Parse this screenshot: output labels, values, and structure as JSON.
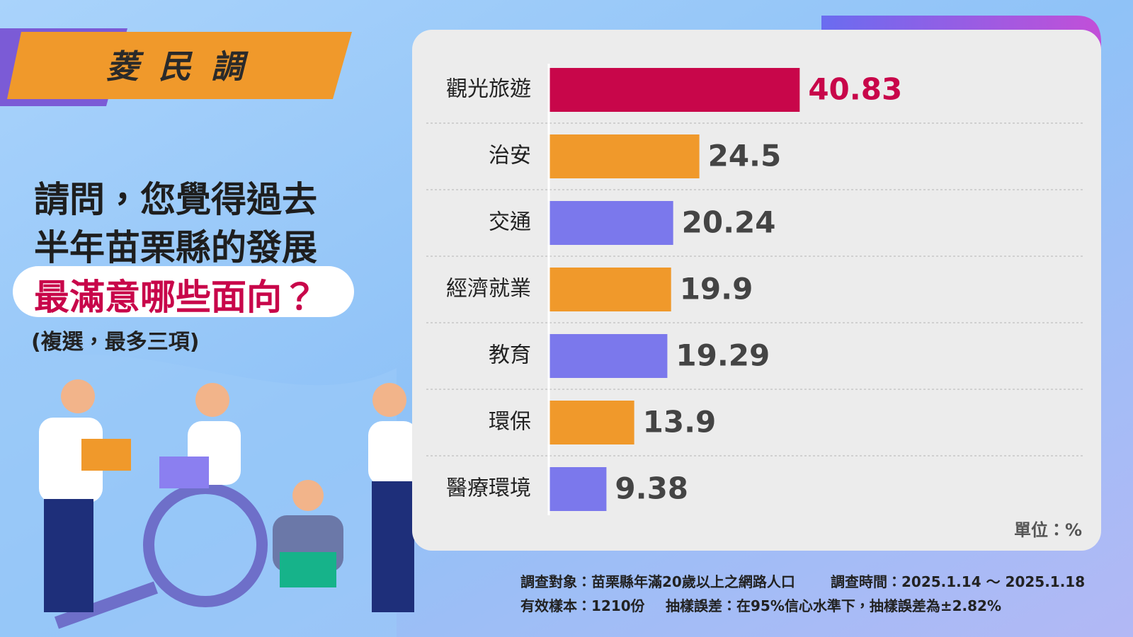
{
  "header": {
    "brand": "菱民調"
  },
  "question": {
    "lines": [
      "請問，您覺得過去",
      "半年苗栗縣的發展"
    ],
    "highlight": "最滿意哪些面向？",
    "note": "(複選，最多三項)"
  },
  "chart_data": {
    "type": "bar",
    "orientation": "horizontal",
    "categories": [
      "觀光旅遊",
      "治安",
      "交通",
      "經濟就業",
      "教育",
      "環保",
      "醫療環境"
    ],
    "values": [
      40.83,
      24.5,
      20.24,
      19.9,
      19.29,
      13.9,
      9.38
    ],
    "colors": [
      "#c8064a",
      "#f0992b",
      "#7b78ec",
      "#f0992b",
      "#7b78ec",
      "#f0992b",
      "#7b78ec"
    ],
    "value_label_colors": [
      "#c8064a",
      "#444444",
      "#444444",
      "#444444",
      "#444444",
      "#444444",
      "#444444"
    ],
    "xlim": [
      0,
      87
    ],
    "unit_note": "單位：%"
  },
  "footer": {
    "lines": [
      [
        "調查對象：苗栗縣年滿20歲以上之網路人口",
        "調查時間：2025.1.14 ～ 2025.1.18"
      ],
      [
        "有效樣本：1210份",
        "抽樣誤差：在95%信心水準下，抽樣誤差為±2.82%"
      ]
    ]
  }
}
